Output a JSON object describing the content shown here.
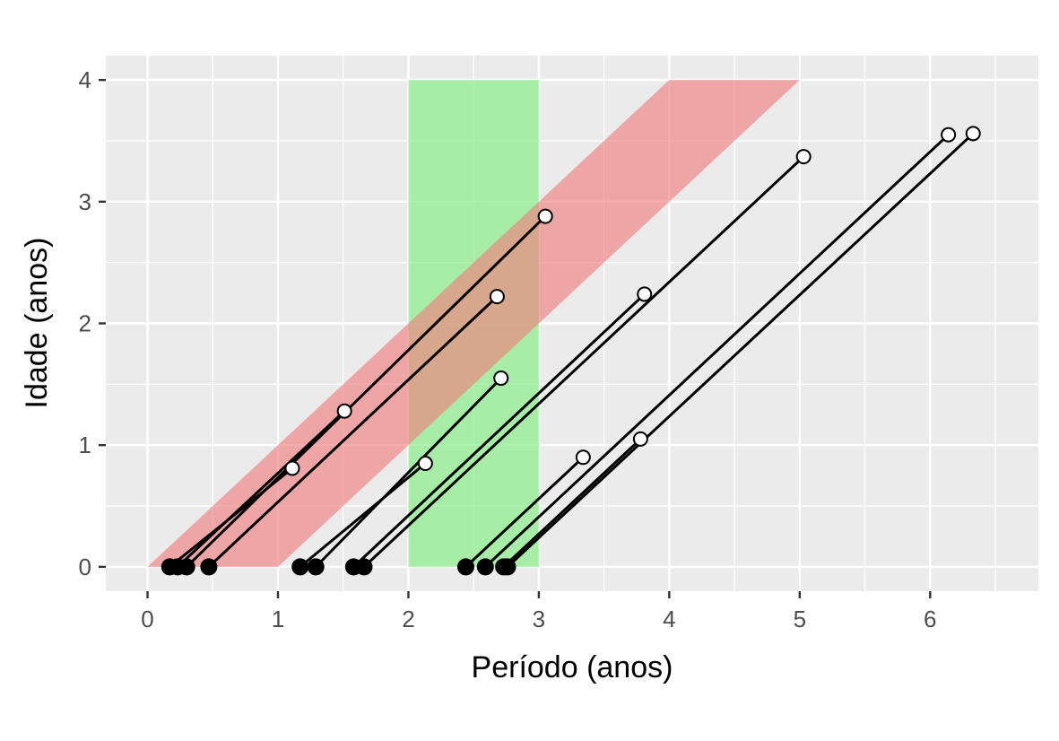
{
  "chart_data": {
    "type": "scatter",
    "title": "",
    "xlabel": "Período (anos)",
    "ylabel": "Idade (anos)",
    "xlim": [
      -0.32,
      6.83
    ],
    "ylim": [
      -0.2,
      4.2
    ],
    "x_ticks": [
      0,
      1,
      2,
      3,
      4,
      5,
      6
    ],
    "y_ticks": [
      0,
      1,
      2,
      3,
      4
    ],
    "x_minor_ticks": [
      -0.5,
      0.5,
      1.5,
      2.5,
      3.5,
      4.5,
      5.5,
      6.5
    ],
    "y_minor_ticks": [
      0.5,
      1.5,
      2.5,
      3.5
    ],
    "grid": true,
    "colors": {
      "panel": "#ebebeb",
      "grid": "#ffffff",
      "period_band": "#90ee90",
      "cohort_band": "#f08080",
      "line": "#000000",
      "entry_point": "#000000",
      "exit_point_fill": "#ffffff"
    },
    "highlight_regions": [
      {
        "kind": "period",
        "color": "#90ee90",
        "opacity": 0.75,
        "polygon": [
          [
            2,
            0
          ],
          [
            3,
            0
          ],
          [
            3,
            4
          ],
          [
            2,
            4
          ]
        ]
      },
      {
        "kind": "cohort",
        "color": "#f08080",
        "opacity": 0.65,
        "polygon": [
          [
            0,
            0
          ],
          [
            1,
            0
          ],
          [
            5,
            4
          ],
          [
            4,
            4
          ]
        ]
      }
    ],
    "lifelines": [
      {
        "entry": 0.17,
        "exit_x": 1.11,
        "exit_y": 0.81
      },
      {
        "entry": 0.23,
        "exit_x": 1.51,
        "exit_y": 1.28
      },
      {
        "entry": 0.3,
        "exit_x": 3.05,
        "exit_y": 2.88
      },
      {
        "entry": 0.47,
        "exit_x": 2.68,
        "exit_y": 2.22
      },
      {
        "entry": 1.17,
        "exit_x": 2.13,
        "exit_y": 0.85
      },
      {
        "entry": 1.29,
        "exit_x": 2.71,
        "exit_y": 1.55
      },
      {
        "entry": 1.58,
        "exit_x": 3.81,
        "exit_y": 2.24
      },
      {
        "entry": 1.66,
        "exit_x": 5.03,
        "exit_y": 3.37
      },
      {
        "entry": 2.44,
        "exit_x": 3.34,
        "exit_y": 0.9
      },
      {
        "entry": 2.59,
        "exit_x": 6.14,
        "exit_y": 3.55
      },
      {
        "entry": 2.73,
        "exit_x": 3.78,
        "exit_y": 1.05
      },
      {
        "entry": 2.76,
        "exit_x": 6.33,
        "exit_y": 3.56
      }
    ]
  }
}
